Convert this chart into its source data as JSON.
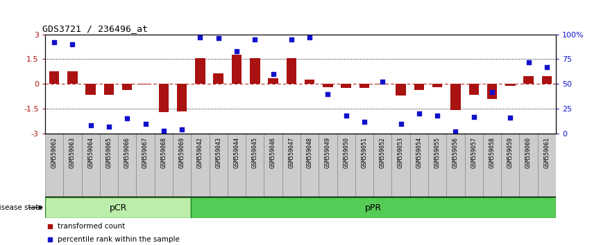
{
  "title": "GDS3721 / 236496_at",
  "samples": [
    "GSM559062",
    "GSM559063",
    "GSM559064",
    "GSM559065",
    "GSM559066",
    "GSM559067",
    "GSM559068",
    "GSM559069",
    "GSM559042",
    "GSM559043",
    "GSM559044",
    "GSM559045",
    "GSM559046",
    "GSM559047",
    "GSM559048",
    "GSM559049",
    "GSM559050",
    "GSM559051",
    "GSM559052",
    "GSM559053",
    "GSM559054",
    "GSM559055",
    "GSM559056",
    "GSM559057",
    "GSM559058",
    "GSM559059",
    "GSM559060",
    "GSM559061"
  ],
  "bar_values": [
    0.75,
    0.75,
    -0.65,
    -0.65,
    -0.35,
    -0.05,
    -1.7,
    -1.65,
    1.55,
    0.65,
    1.75,
    1.55,
    0.35,
    1.55,
    0.25,
    -0.2,
    -0.25,
    -0.25,
    -0.05,
    -0.7,
    -0.35,
    -0.2,
    -1.6,
    -0.65,
    -0.9,
    -0.1,
    0.45,
    0.45
  ],
  "percentile_values": [
    92,
    90,
    8,
    7,
    15,
    10,
    3,
    4,
    97,
    96,
    83,
    95,
    60,
    95,
    97,
    40,
    18,
    12,
    52,
    10,
    20,
    18,
    2,
    17,
    42,
    16,
    72,
    67
  ],
  "group1_label": "pCR",
  "group1_count": 8,
  "group2_label": "pPR",
  "group2_count": 20,
  "bar_color": "#AA1111",
  "dot_color": "#1111CC",
  "group1_facecolor": "#BBEEAA",
  "group2_facecolor": "#55CC55",
  "group_edgecolor": "#228822",
  "ylim_left": [
    -3.0,
    3.0
  ],
  "ylim_right": [
    0,
    100
  ],
  "yticks_left": [
    -3,
    -1.5,
    0,
    1.5,
    3
  ],
  "ytick_labels_left": [
    "-3",
    "-1.5",
    "0",
    "1.5",
    "3"
  ],
  "yticks_right": [
    0,
    25,
    50,
    75,
    100
  ],
  "ytick_labels_right": [
    "0",
    "25",
    "50",
    "75",
    "100%"
  ],
  "dotted_hlines": [
    1.5,
    -1.5
  ],
  "dashed_hline": 0.0,
  "legend_bar": "transformed count",
  "legend_dot": "percentile rank within the sample",
  "disease_state_label": "disease state"
}
